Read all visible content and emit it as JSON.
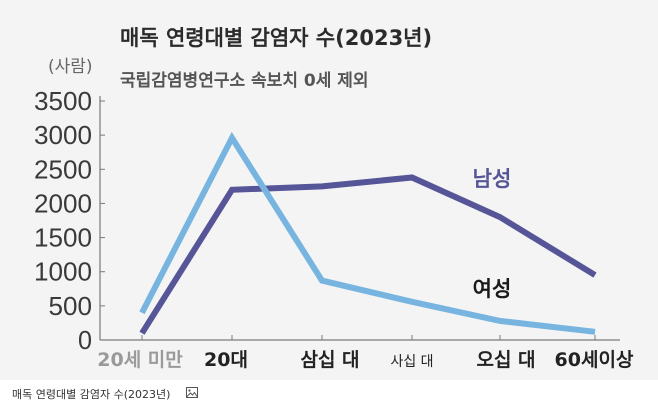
{
  "title": "매독 연령대별 감염자 수(2023년)",
  "subtitle": "국립감염병연구소 속보치 0세 제외",
  "unit": "(사람)",
  "caption": "매독 연령대별 감염자 수(2023년)",
  "caption_icon": "image-icon",
  "colors": {
    "male": "#565597",
    "female": "#77b5e0",
    "axis": "#7a7a7a",
    "background": "#f4f4f4"
  },
  "chart_data": {
    "type": "line",
    "title": "매독 연령대별 감염자 수(2023년)",
    "subtitle": "국립감염병연구소 속보치 0세 제외",
    "ylabel": "(사람)",
    "categories": [
      "20세 미만",
      "20대",
      "삼십 대",
      "사십 대",
      "오십 대",
      "60세이상"
    ],
    "y_ticks": [
      "3500",
      "3000",
      "2500",
      "2000",
      "1500",
      "1000",
      "500",
      "0"
    ],
    "ylim": [
      0,
      3500
    ],
    "grid": false,
    "series": [
      {
        "name": "남성",
        "values": [
          100,
          2200,
          2250,
          2380,
          1800,
          950
        ]
      },
      {
        "name": "여성",
        "values": [
          400,
          2960,
          870,
          560,
          280,
          120
        ]
      }
    ]
  }
}
